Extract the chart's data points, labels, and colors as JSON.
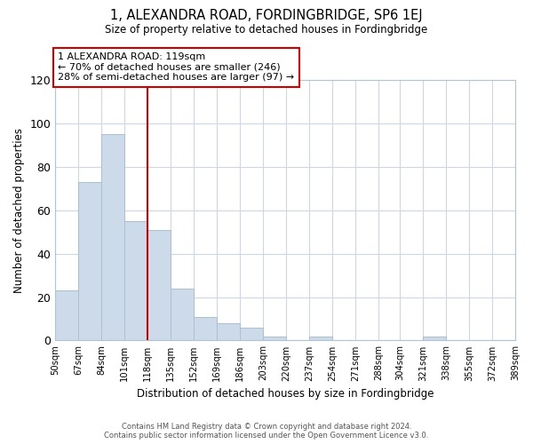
{
  "title": "1, ALEXANDRA ROAD, FORDINGBRIDGE, SP6 1EJ",
  "subtitle": "Size of property relative to detached houses in Fordingbridge",
  "xlabel": "Distribution of detached houses by size in Fordingbridge",
  "ylabel": "Number of detached properties",
  "bar_edges": [
    50,
    67,
    84,
    101,
    118,
    135,
    152,
    169,
    186,
    203,
    220,
    237,
    254,
    271,
    288,
    304,
    321,
    338,
    355,
    372,
    389
  ],
  "bar_heights": [
    23,
    73,
    95,
    55,
    51,
    24,
    11,
    8,
    6,
    2,
    0,
    2,
    0,
    0,
    0,
    0,
    2,
    0,
    0,
    0,
    0
  ],
  "bar_color": "#cddaea",
  "bar_edgecolor": "#aabfcf",
  "vline_x": 118,
  "vline_color": "#cc0000",
  "ylim": [
    0,
    120
  ],
  "yticks": [
    0,
    20,
    40,
    60,
    80,
    100,
    120
  ],
  "annotation_title": "1 ALEXANDRA ROAD: 119sqm",
  "annotation_line1": "← 70% of detached houses are smaller (246)",
  "annotation_line2": "28% of semi-detached houses are larger (97) →",
  "footer_line1": "Contains HM Land Registry data © Crown copyright and database right 2024.",
  "footer_line2": "Contains public sector information licensed under the Open Government Licence v3.0.",
  "background_color": "#ffffff",
  "grid_color": "#ccd8e4"
}
